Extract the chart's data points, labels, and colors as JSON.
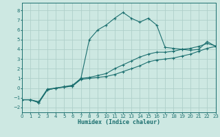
{
  "xlabel": "Humidex (Indice chaleur)",
  "background_color": "#cde8e2",
  "grid_color": "#aecfca",
  "line_color": "#1a6e6e",
  "xlim": [
    0,
    23
  ],
  "ylim": [
    -2.5,
    8.8
  ],
  "xticks": [
    0,
    1,
    2,
    3,
    4,
    5,
    6,
    7,
    8,
    9,
    10,
    11,
    12,
    13,
    14,
    15,
    16,
    17,
    18,
    19,
    20,
    21,
    22,
    23
  ],
  "yticks": [
    -2,
    -1,
    0,
    1,
    2,
    3,
    4,
    5,
    6,
    7,
    8
  ],
  "curve1_x": [
    0,
    1,
    2,
    3,
    4,
    5,
    6,
    7,
    8,
    9,
    10,
    11,
    12,
    13,
    14,
    15,
    16,
    17,
    18,
    19,
    20,
    21,
    22,
    23
  ],
  "curve1_y": [
    -1.2,
    -1.2,
    -1.5,
    -0.2,
    0.0,
    0.1,
    0.2,
    0.9,
    1.0,
    1.1,
    1.2,
    1.4,
    1.7,
    2.0,
    2.3,
    2.7,
    2.9,
    3.0,
    3.1,
    3.3,
    3.5,
    3.8,
    4.1,
    4.3
  ],
  "curve2_x": [
    0,
    1,
    2,
    3,
    4,
    5,
    6,
    7,
    8,
    9,
    10,
    11,
    12,
    13,
    14,
    15,
    16,
    17,
    18,
    19,
    20,
    21,
    22,
    23
  ],
  "curve2_y": [
    -1.2,
    -1.2,
    -1.4,
    -0.1,
    0.0,
    0.15,
    0.3,
    1.0,
    1.1,
    1.3,
    1.5,
    2.0,
    2.4,
    2.8,
    3.2,
    3.5,
    3.7,
    3.7,
    3.8,
    4.0,
    4.1,
    4.3,
    4.6,
    4.35
  ],
  "curve3_x": [
    0,
    1,
    2,
    3,
    4,
    5,
    6,
    7,
    8,
    9,
    10,
    11,
    12,
    13,
    14,
    15,
    16,
    17,
    18,
    19,
    20,
    21,
    22,
    23
  ],
  "curve3_y": [
    -1.2,
    -1.2,
    -1.5,
    -0.2,
    0.0,
    0.1,
    0.2,
    1.0,
    5.0,
    6.0,
    6.5,
    7.2,
    7.8,
    7.2,
    6.8,
    7.2,
    6.5,
    4.2,
    4.1,
    4.0,
    3.9,
    4.0,
    4.8,
    4.3
  ]
}
